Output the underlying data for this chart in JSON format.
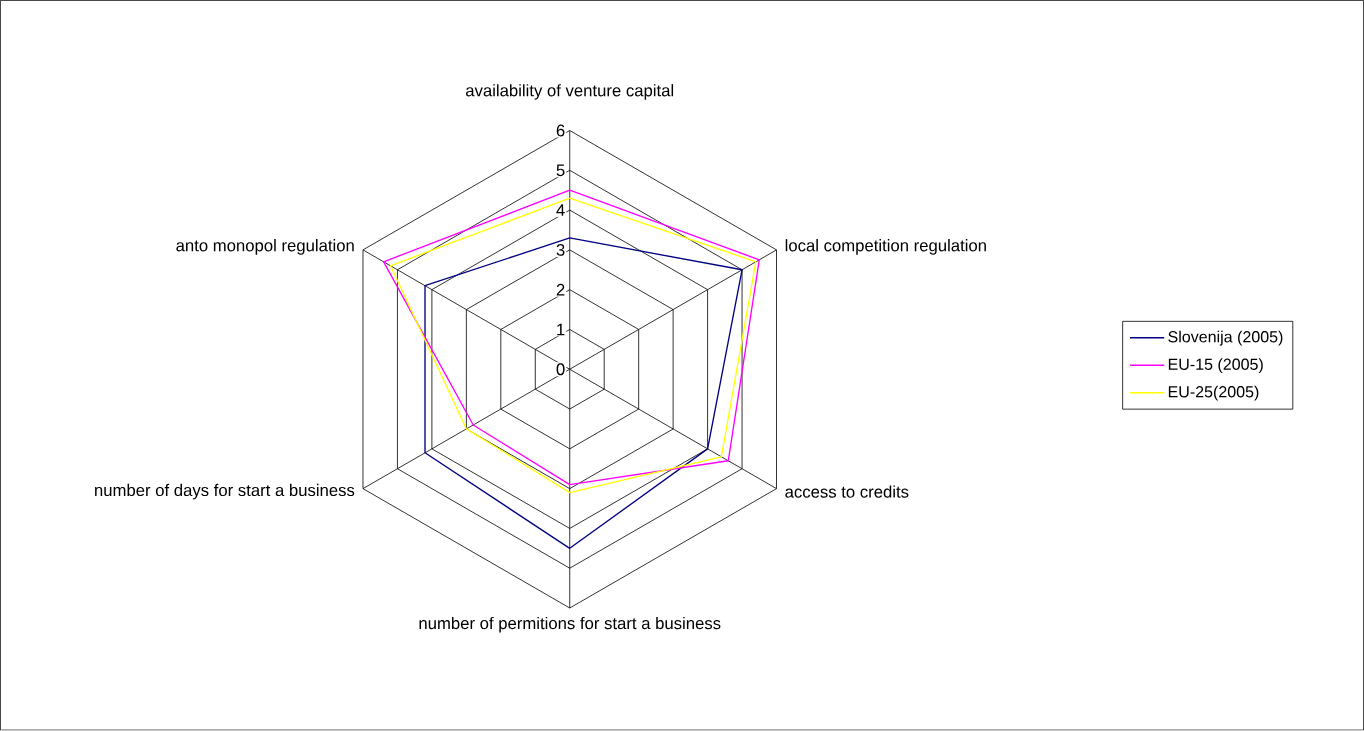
{
  "chart_data": {
    "type": "radar",
    "categories": [
      "availability of venture capital",
      "local competition regulation",
      "access to credits",
      "number of permitions for start a business",
      "number of days for start a business",
      "anto monopol regulation"
    ],
    "series": [
      {
        "name": "Slovenija (2005)",
        "color": "#000080",
        "values": [
          3.3,
          5.0,
          4.0,
          4.5,
          4.2,
          4.2
        ]
      },
      {
        "name": "EU-15 (2005)",
        "color": "#ff00ff",
        "values": [
          4.5,
          5.5,
          4.6,
          2.9,
          2.8,
          5.4
        ]
      },
      {
        "name": "EU-25(2005)",
        "color": "#ffff00",
        "values": [
          4.3,
          5.4,
          4.4,
          3.1,
          3.0,
          5.2
        ]
      }
    ],
    "ylim": [
      0,
      6
    ],
    "yticks": [
      0,
      1,
      2,
      3,
      4,
      5,
      6
    ],
    "grid": true,
    "legend": "right"
  }
}
